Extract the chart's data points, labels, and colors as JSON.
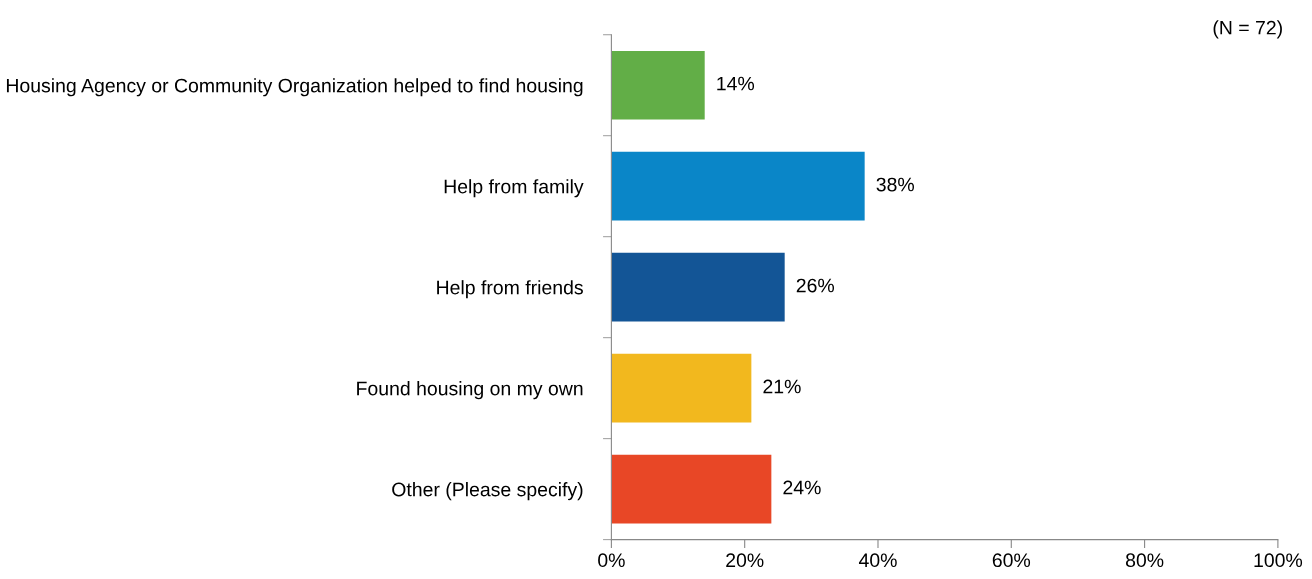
{
  "chart_data": {
    "type": "bar",
    "orientation": "horizontal",
    "categories": [
      "Housing Agency or Community Organization helped to find housing",
      "Help from family",
      "Help from friends",
      "Found housing on my own",
      "Other (Please specify)"
    ],
    "values": [
      14,
      38,
      26,
      21,
      24
    ],
    "colors": [
      "#62ae47",
      "#0a86c8",
      "#135596",
      "#f2b81e",
      "#e84726"
    ],
    "value_labels": [
      "14%",
      "38%",
      "26%",
      "21%",
      "24%"
    ],
    "xlim": [
      0,
      100
    ],
    "xticks": [
      {
        "value": 0,
        "label": "0%"
      },
      {
        "value": 20,
        "label": "20%"
      },
      {
        "value": 40,
        "label": "40%"
      },
      {
        "value": 60,
        "label": "60%"
      },
      {
        "value": 80,
        "label": "80%"
      },
      {
        "value": 100,
        "label": "100%"
      }
    ],
    "annotations": [
      "(N = 72)"
    ],
    "grid": false,
    "legend": false
  }
}
